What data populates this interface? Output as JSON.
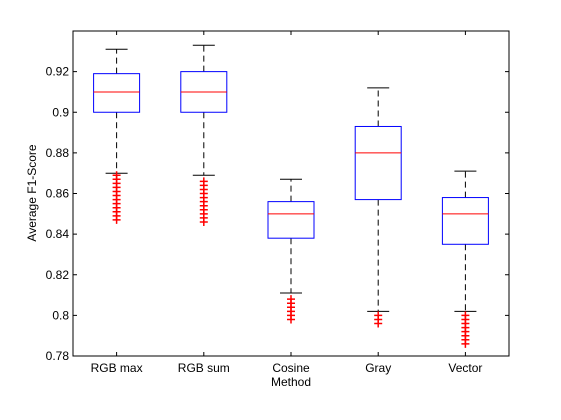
{
  "chart_data": {
    "type": "boxplot",
    "ylabel": "Average F1-Score",
    "xlabel": "",
    "title": "",
    "ylim": [
      0.78,
      0.94
    ],
    "yticks": [
      0.78,
      0.8,
      0.82,
      0.84,
      0.86,
      0.88,
      0.9,
      0.92
    ],
    "ytick_labels": [
      "0.78",
      "0.8",
      "0.82",
      "0.84",
      "0.86",
      "0.88",
      "0.9",
      "0.92"
    ],
    "categories": [
      {
        "lines": [
          "RGB max"
        ]
      },
      {
        "lines": [
          "RGB sum"
        ]
      },
      {
        "lines": [
          "Cosine",
          "Method"
        ]
      },
      {
        "lines": [
          "Gray"
        ]
      },
      {
        "lines": [
          "Vector"
        ]
      }
    ],
    "boxes": [
      {
        "whisker_low": 0.87,
        "q1": 0.9,
        "median": 0.91,
        "q3": 0.919,
        "whisker_high": 0.931,
        "outliers": [
          0.847,
          0.849,
          0.851,
          0.853,
          0.855,
          0.857,
          0.859,
          0.861,
          0.863,
          0.865,
          0.867,
          0.869
        ]
      },
      {
        "whisker_low": 0.869,
        "q1": 0.9,
        "median": 0.91,
        "q3": 0.92,
        "whisker_high": 0.933,
        "outliers": [
          0.846,
          0.848,
          0.85,
          0.852,
          0.854,
          0.856,
          0.858,
          0.86,
          0.862,
          0.864,
          0.866
        ]
      },
      {
        "whisker_low": 0.811,
        "q1": 0.838,
        "median": 0.85,
        "q3": 0.856,
        "whisker_high": 0.867,
        "outliers": [
          0.798,
          0.8,
          0.802,
          0.804,
          0.806,
          0.808
        ]
      },
      {
        "whisker_low": 0.802,
        "q1": 0.857,
        "median": 0.88,
        "q3": 0.893,
        "whisker_high": 0.912,
        "outliers": [
          0.796,
          0.798,
          0.8
        ]
      },
      {
        "whisker_low": 0.802,
        "q1": 0.835,
        "median": 0.85,
        "q3": 0.858,
        "whisker_high": 0.871,
        "outliers": [
          0.786,
          0.788,
          0.79,
          0.792,
          0.794,
          0.796,
          0.798,
          0.8
        ]
      }
    ],
    "colors": {
      "box": "#0000ff",
      "median": "#ff0000",
      "whisker": "#000000",
      "outlier": "#ff0000",
      "axis": "#000000"
    }
  }
}
